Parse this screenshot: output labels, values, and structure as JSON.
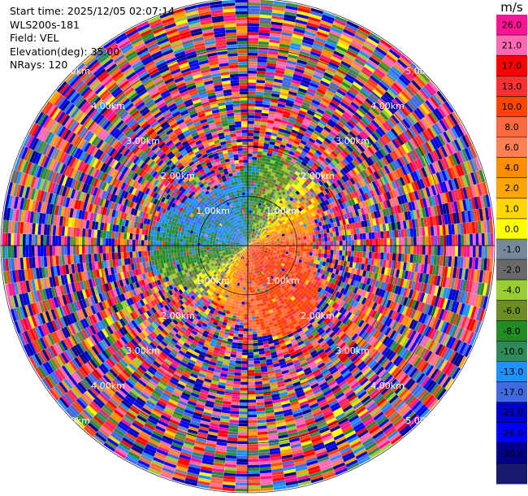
{
  "header": {
    "start_time": "Start time: 2025/12/05 02:07:14",
    "instrument": "WLS200s-181",
    "field": "Field: VEL",
    "elevation": "Elevation(deg): 35.00",
    "nrays": "NRays: 120"
  },
  "chart_data": {
    "type": "heatmap",
    "projection": "polar-ppi",
    "field": "VEL",
    "units": "m/s",
    "n_rays": 120,
    "range_ring_labels": [
      "1.00km",
      "2.00km",
      "3.00km",
      "4.00km",
      "5.00km"
    ],
    "colorbar": {
      "unit_label": "m/s",
      "ticks": [
        "26.0",
        "21.0",
        "17.0",
        "13.0",
        "10.0",
        "8.0",
        "6.0",
        "4.0",
        "2.0",
        "1.0",
        "0.0",
        "-1.0",
        "-2.0",
        "-4.0",
        "-6.0",
        "-8.0",
        "-10.0",
        "-13.0",
        "-17.0",
        "-21.0",
        "-26.0",
        "-30.0"
      ],
      "colors": [
        "#ff1493",
        "#ff69b4",
        "#ff0000",
        "#ff3030",
        "#ff4500",
        "#ff6a3d",
        "#ff7f50",
        "#ff8c00",
        "#ffa500",
        "#ffd700",
        "#ffff00",
        "#778899",
        "#696969",
        "#9acd32",
        "#6b8e23",
        "#228b22",
        "#2e8b57",
        "#1e90ff",
        "#4169e1",
        "#0000cd",
        "#0000ff",
        "#00008b",
        "#191970"
      ]
    },
    "inner_pattern": [
      {
        "sector": "north-west",
        "value_range": [
          -17,
          -8
        ],
        "color": "blue"
      },
      {
        "sector": "east",
        "value_range": [
          2,
          8
        ],
        "color": "yellow-orange"
      },
      {
        "sector": "south-west",
        "value_range": [
          -6,
          4
        ],
        "color": "green-yellow"
      },
      {
        "sector": "south-east",
        "value_range": [
          6,
          21
        ],
        "color": "orange-red"
      }
    ],
    "outer_pattern": "noise (random multi-colour)"
  }
}
